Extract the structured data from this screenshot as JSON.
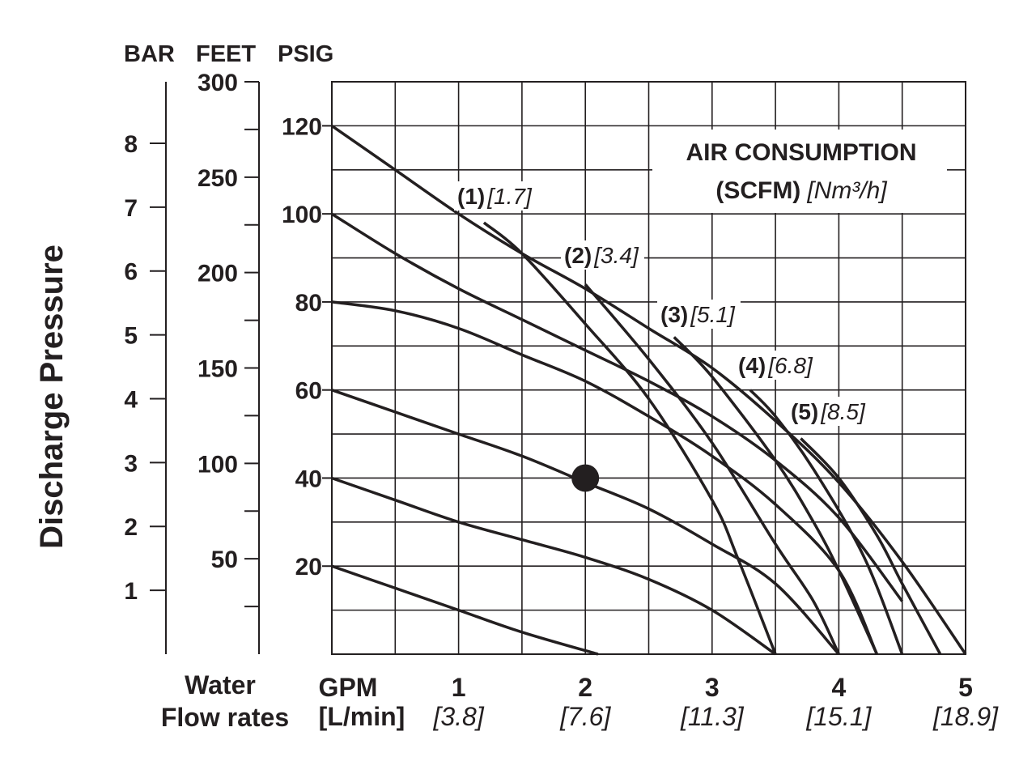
{
  "chart_data": {
    "type": "line",
    "title": "",
    "ylabel": "Discharge Pressure",
    "xlabel": "Water Flow rates",
    "x_unit_labels": [
      "GPM",
      "[L/min]"
    ],
    "x_ticks": [
      {
        "gpm": "1",
        "lpm": "[3.8]"
      },
      {
        "gpm": "2",
        "lpm": "[7.6]"
      },
      {
        "gpm": "3",
        "lpm": "[11.3]"
      },
      {
        "gpm": "4",
        "lpm": "[15.1]"
      },
      {
        "gpm": "5",
        "lpm": "[18.9]"
      }
    ],
    "xlim": [
      0,
      5
    ],
    "y_axes": {
      "bar": {
        "label": "BAR",
        "ticks": [
          "1",
          "2",
          "3",
          "4",
          "5",
          "6",
          "7",
          "8"
        ],
        "lim": [
          0,
          8.7
        ]
      },
      "feet": {
        "label": "FEET",
        "ticks": [
          "50",
          "100",
          "150",
          "200",
          "250",
          "300"
        ],
        "lim": [
          0,
          300
        ]
      },
      "psig": {
        "label": "PSIG",
        "ticks": [
          "20",
          "40",
          "60",
          "80",
          "100",
          "120"
        ],
        "lim": [
          0,
          130
        ]
      }
    },
    "grid": true,
    "legend_title": "AIR CONSUMPTION",
    "legend_subtitle_bold": "(SCFM)",
    "legend_subtitle_ital": "[Nm³/h]",
    "pressure_curves": [
      {
        "supply_psig": 120,
        "x": [
          0,
          0.5,
          1,
          1.5,
          2,
          2.5,
          3,
          3.5,
          4,
          4.5,
          5
        ],
        "y": [
          120,
          110,
          100,
          91,
          83,
          74,
          65,
          53,
          39,
          21,
          0
        ]
      },
      {
        "supply_psig": 100,
        "x": [
          0,
          0.5,
          1,
          1.5,
          2,
          2.5,
          3,
          3.5,
          4,
          4.5
        ],
        "y": [
          100,
          91,
          83,
          76,
          69,
          62,
          54,
          44,
          31,
          12
        ]
      },
      {
        "supply_psig": 80,
        "x": [
          0,
          0.5,
          1,
          1.5,
          2,
          2.5,
          3,
          3.5,
          4,
          4.3
        ],
        "y": [
          80,
          78,
          74,
          68,
          62,
          54,
          45,
          34,
          19,
          0
        ]
      },
      {
        "supply_psig": 60,
        "x": [
          0,
          0.5,
          1,
          1.5,
          2,
          2.5,
          3,
          3.5,
          4
        ],
        "y": [
          60,
          55,
          50,
          45,
          39,
          33,
          25,
          16,
          0
        ]
      },
      {
        "supply_psig": 40,
        "x": [
          0,
          0.5,
          1,
          1.5,
          2,
          2.5,
          3,
          3.5
        ],
        "y": [
          40,
          35,
          30,
          26,
          22,
          17,
          10,
          0
        ]
      },
      {
        "supply_psig": 20,
        "x": [
          0,
          0.5,
          1,
          1.5,
          2.1
        ],
        "y": [
          20,
          15,
          10,
          5,
          0
        ]
      }
    ],
    "air_consumption_curves": [
      {
        "label_bold": "(1)",
        "label_ital": "[1.7]",
        "x": [
          1.2,
          1.5,
          2,
          2.5,
          3,
          3.2,
          3.5
        ],
        "y": [
          98,
          91,
          75,
          58,
          35,
          22,
          0
        ]
      },
      {
        "label_bold": "(2)",
        "label_ital": "[3.4]",
        "x": [
          2,
          2.5,
          3,
          3.5,
          3.8,
          4
        ],
        "y": [
          84,
          67,
          48,
          25,
          12,
          0
        ]
      },
      {
        "label_bold": "(3)",
        "label_ital": "[5.1]",
        "x": [
          2.7,
          3,
          3.5,
          3.8,
          4,
          4.3
        ],
        "y": [
          72,
          63,
          44,
          30,
          19,
          0
        ]
      },
      {
        "label_bold": "(4)",
        "label_ital": "[6.8]",
        "x": [
          3.3,
          3.5,
          3.8,
          4.2,
          4.5
        ],
        "y": [
          60,
          54,
          42,
          22,
          0
        ]
      },
      {
        "label_bold": "(5)",
        "label_ital": "[8.5]",
        "x": [
          3.7,
          4,
          4.3,
          4.5,
          4.8
        ],
        "y": [
          49,
          40,
          27,
          16,
          0
        ]
      }
    ],
    "operating_point": {
      "x": 2,
      "y": 40
    }
  }
}
